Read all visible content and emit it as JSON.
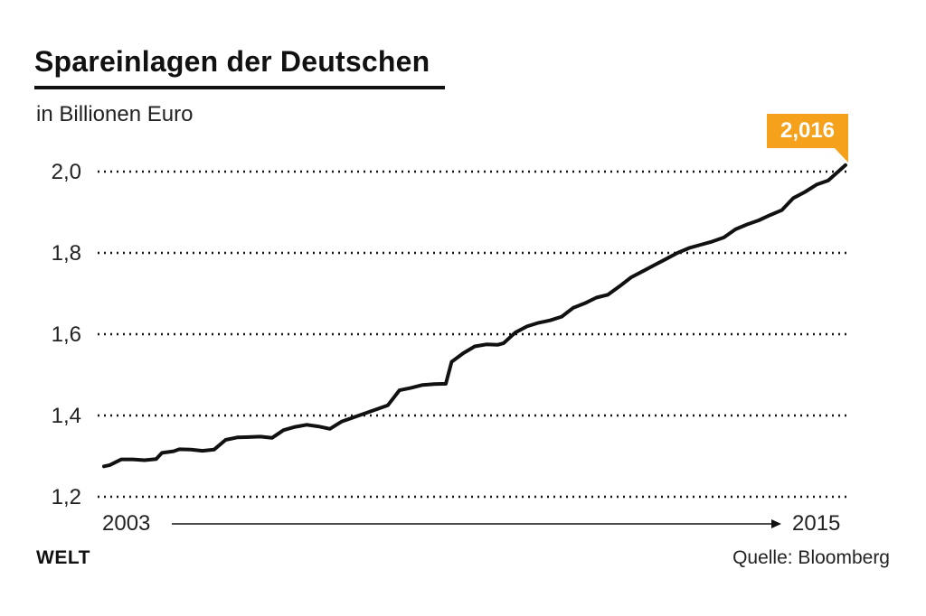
{
  "chart_data": {
    "type": "line",
    "title": "Spareinlagen der Deutschen",
    "subtitle": "in Billionen Euro",
    "ylim": [
      1.2,
      2.0
    ],
    "yticks": [
      2.0,
      1.8,
      1.6,
      1.4,
      1.2
    ],
    "ytick_labels": [
      "2,0",
      "1,8",
      "1,6",
      "1,4",
      "1,2"
    ],
    "grid": true,
    "x_start_label": "2003",
    "x_end_label": "2015",
    "x_range": [
      2003.0,
      2015.8
    ],
    "callout": {
      "label": "2,016",
      "color": "#f5a11c"
    },
    "series": [
      {
        "x": [
          2003.0,
          2003.1,
          2003.3,
          2003.5,
          2003.7,
          2003.9,
          2004.0,
          2004.2,
          2004.3,
          2004.5,
          2004.7,
          2004.9,
          2005.1,
          2005.3,
          2005.5,
          2005.7,
          2005.9,
          2006.1,
          2006.3,
          2006.5,
          2006.7,
          2006.9,
          2007.1,
          2007.3,
          2007.5,
          2007.7,
          2007.9,
          2008.1,
          2008.3,
          2008.5,
          2008.7,
          2008.9,
          2009.0,
          2009.2,
          2009.4,
          2009.6,
          2009.8,
          2009.9,
          2010.1,
          2010.3,
          2010.5,
          2010.7,
          2010.9,
          2011.1,
          2011.3,
          2011.5,
          2011.7,
          2011.9,
          2012.1,
          2012.3,
          2012.5,
          2012.7,
          2012.9,
          2013.1,
          2013.3,
          2013.5,
          2013.7,
          2013.9,
          2014.1,
          2014.3,
          2014.5,
          2014.7,
          2014.9,
          2015.1,
          2015.3,
          2015.5,
          2015.8
        ],
        "values": [
          1.275,
          1.278,
          1.292,
          1.292,
          1.29,
          1.293,
          1.308,
          1.312,
          1.317,
          1.316,
          1.313,
          1.316,
          1.34,
          1.346,
          1.347,
          1.348,
          1.345,
          1.364,
          1.372,
          1.377,
          1.373,
          1.367,
          1.385,
          1.395,
          1.405,
          1.415,
          1.425,
          1.462,
          1.468,
          1.475,
          1.477,
          1.478,
          1.532,
          1.553,
          1.57,
          1.575,
          1.574,
          1.578,
          1.604,
          1.619,
          1.628,
          1.634,
          1.643,
          1.665,
          1.676,
          1.69,
          1.697,
          1.718,
          1.74,
          1.755,
          1.77,
          1.785,
          1.8,
          1.812,
          1.82,
          1.828,
          1.838,
          1.858,
          1.87,
          1.88,
          1.893,
          1.905,
          1.935,
          1.95,
          1.968,
          1.978,
          2.016
        ]
      }
    ]
  },
  "brand": "WELT",
  "source": "Quelle: Bloomberg"
}
